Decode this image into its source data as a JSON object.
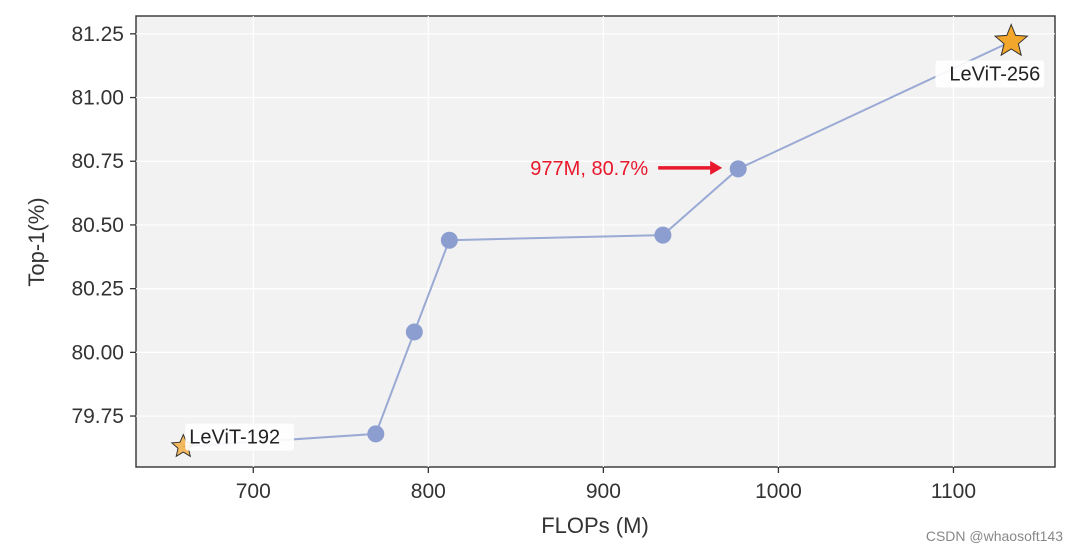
{
  "chart_data": {
    "type": "line",
    "xlabel": "FLOPs (M)",
    "ylabel": "Top-1(%)",
    "xlim": [
      633,
      1158
    ],
    "ylim": [
      79.55,
      81.32
    ],
    "xticks": [
      700,
      800,
      900,
      1000,
      1100
    ],
    "yticks": [
      79.75,
      80.0,
      80.25,
      80.5,
      80.75,
      81.0,
      81.25
    ],
    "grid": true,
    "series": [
      {
        "points": [
          {
            "x": 660,
            "y": 79.63
          },
          {
            "x": 770,
            "y": 79.68
          },
          {
            "x": 792,
            "y": 80.08
          },
          {
            "x": 812,
            "y": 80.44
          },
          {
            "x": 934,
            "y": 80.46
          },
          {
            "x": 977,
            "y": 80.72
          },
          {
            "x": 1133,
            "y": 81.22
          }
        ]
      }
    ],
    "star_points": [
      {
        "label": "LeViT-192",
        "x": 660,
        "y": 79.63
      },
      {
        "label": "LeViT-256",
        "x": 1133,
        "y": 81.22
      }
    ],
    "annotation": {
      "text": "977M, 80.7%",
      "x": 977,
      "y": 80.72
    }
  },
  "colors": {
    "line": "#9aaad4",
    "point": "#8c9ecf",
    "star_fill": "#f3a62c",
    "star_stroke": "#333333",
    "annotation": "#e8192c",
    "plot_bg": "#f2f2f2",
    "grid": "#ffffff"
  },
  "watermark": "CSDN @whaosoft143"
}
